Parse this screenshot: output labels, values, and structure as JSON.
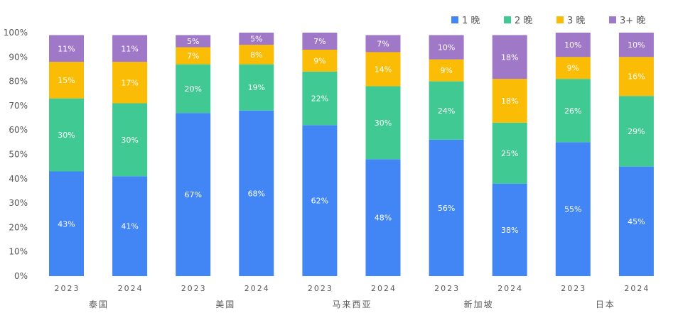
{
  "chart_data": {
    "type": "bar",
    "stacked": true,
    "title": "",
    "xlabel": "",
    "ylabel": "",
    "ylim": [
      0,
      100
    ],
    "yticks": [
      "0%",
      "10%",
      "20%",
      "30%",
      "40%",
      "50%",
      "60%",
      "70%",
      "80%",
      "90%",
      "100%"
    ],
    "legend_position": "top-right",
    "groups": [
      "泰国",
      "美国",
      "马来西亚",
      "新加坡",
      "日本"
    ],
    "categories": [
      "2023",
      "2024",
      "2023",
      "2024",
      "2023",
      "2024",
      "2023",
      "2024",
      "2023",
      "2024"
    ],
    "series": [
      {
        "name": "1 晚",
        "color": "#4285f4",
        "values": [
          43,
          41,
          67,
          68,
          62,
          48,
          56,
          38,
          55,
          45
        ]
      },
      {
        "name": "2 晚",
        "color": "#41c993",
        "values": [
          30,
          30,
          20,
          19,
          22,
          30,
          24,
          25,
          26,
          29
        ]
      },
      {
        "name": "3 晚",
        "color": "#fbbc05",
        "values": [
          15,
          17,
          7,
          8,
          9,
          14,
          9,
          18,
          9,
          16
        ]
      },
      {
        "name": "3+ 晚",
        "color": "#a078c8",
        "values": [
          11,
          11,
          5,
          5,
          7,
          7,
          10,
          18,
          10,
          10
        ]
      }
    ],
    "data_labels": [
      [
        "43%",
        "41%",
        "67%",
        "68%",
        "62%",
        "48%",
        "56%",
        "38%",
        "55%",
        "45%"
      ],
      [
        "30%",
        "30%",
        "20%",
        "19%",
        "22%",
        "30%",
        "24%",
        "25%",
        "26%",
        "29%"
      ],
      [
        "15%",
        "17%",
        "7%",
        "8%",
        "9%",
        "14%",
        "9%",
        "18%",
        "9%",
        "16%"
      ],
      [
        "11%",
        "11%",
        "5%",
        "5%",
        "7%",
        "7%",
        "10%",
        "18%",
        "10%",
        "10%"
      ]
    ]
  }
}
